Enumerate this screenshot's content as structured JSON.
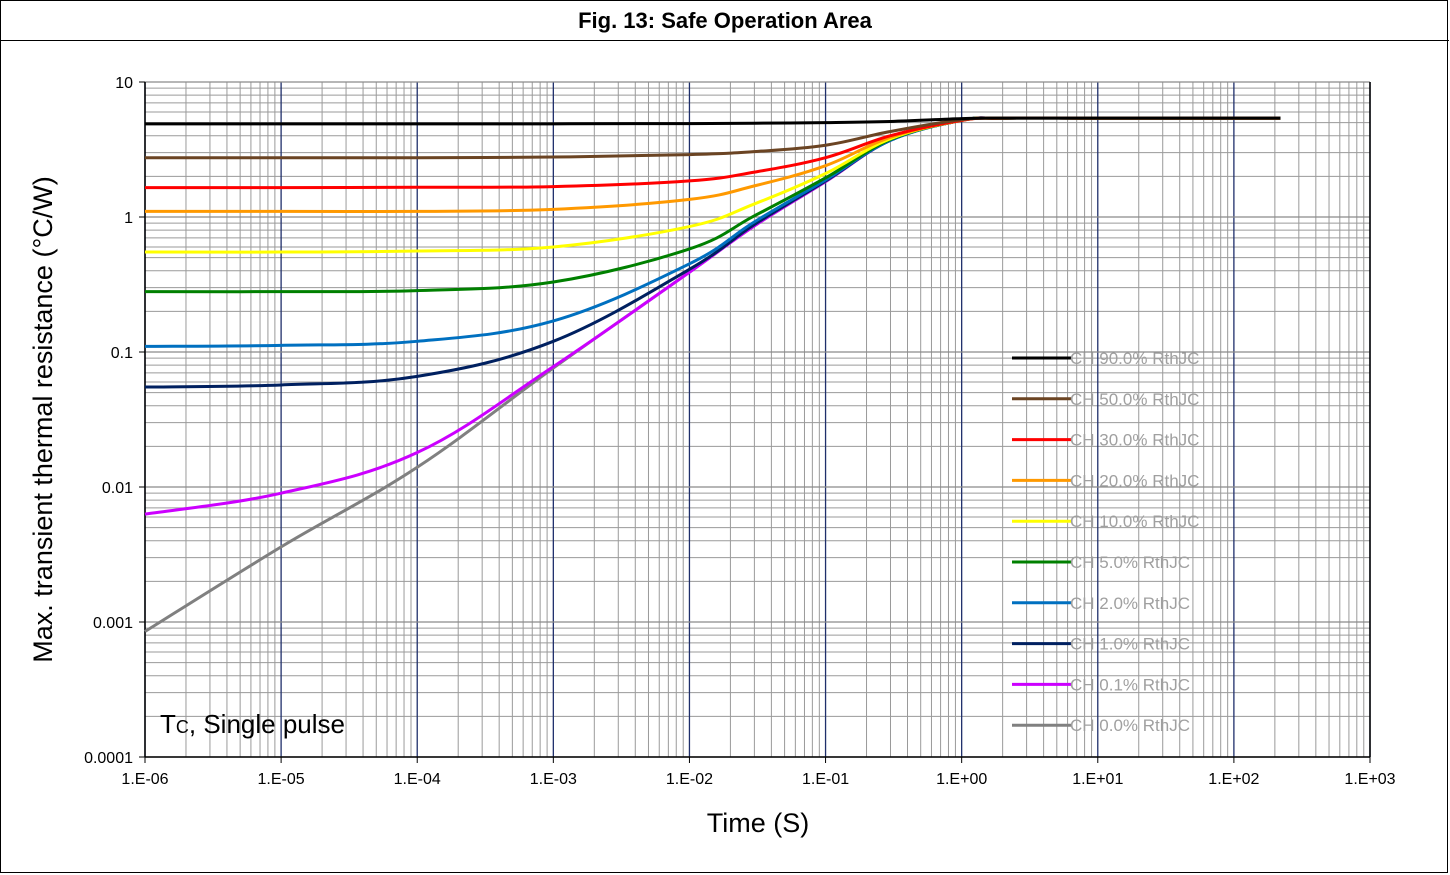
{
  "title": "Fig. 13: Safe Operation Area",
  "chart_data": {
    "type": "line",
    "title": "Fig. 13: Safe Operation Area",
    "xlabel": "Time (S)",
    "ylabel": "Max. transient thermal resistance (°C/W)",
    "x_scale": "log",
    "y_scale": "log",
    "xlim": [
      1e-06,
      1000
    ],
    "ylim": [
      0.0001,
      10
    ],
    "x_tick_labels": [
      "1.E-06",
      "1.E-05",
      "1.E-04",
      "1.E-03",
      "1.E-02",
      "1.E-01",
      "1.E+00",
      "1.E+01",
      "1.E+02",
      "1.E+03"
    ],
    "y_tick_labels": [
      "10",
      "1",
      "0.1",
      "0.01",
      "0.001",
      "0.0001"
    ],
    "grid": true,
    "legend_position": "right",
    "annotation": "Tc, Single pulse",
    "x": [
      1e-06,
      1e-05,
      0.0001,
      0.001,
      0.01,
      0.03,
      0.1,
      0.3,
      1,
      2,
      10,
      100,
      220
    ],
    "series": [
      {
        "name": "CH 90.0% RthJC",
        "color": "#000000",
        "values": [
          4.9,
          4.9,
          4.9,
          4.9,
          4.92,
          4.95,
          5.0,
          5.1,
          5.35,
          5.4,
          5.4,
          5.4,
          5.4
        ]
      },
      {
        "name": "CH 50.0% RthJC",
        "color": "#6b4423",
        "values": [
          2.75,
          2.75,
          2.75,
          2.78,
          2.9,
          3.05,
          3.4,
          4.3,
          5.25,
          5.4,
          5.4,
          5.4,
          5.4
        ]
      },
      {
        "name": "CH 30.0% RthJC",
        "color": "#ff0000",
        "values": [
          1.65,
          1.65,
          1.66,
          1.68,
          1.85,
          2.15,
          2.75,
          4.0,
          5.2,
          5.4,
          5.4,
          5.4,
          5.4
        ]
      },
      {
        "name": "CH 20.0% RthJC",
        "color": "#ff9900",
        "values": [
          1.1,
          1.1,
          1.1,
          1.14,
          1.35,
          1.7,
          2.4,
          3.9,
          5.2,
          5.4,
          5.4,
          5.4,
          5.4
        ]
      },
      {
        "name": "CH 10.0% RthJC",
        "color": "#ffff00",
        "values": [
          0.55,
          0.55,
          0.56,
          0.6,
          0.85,
          1.25,
          2.1,
          3.8,
          5.2,
          5.4,
          5.4,
          5.4,
          5.4
        ]
      },
      {
        "name": "CH 5.0% RthJC",
        "color": "#008000",
        "values": [
          0.28,
          0.28,
          0.285,
          0.33,
          0.58,
          1.02,
          1.95,
          3.75,
          5.2,
          5.4,
          5.4,
          5.4,
          5.4
        ]
      },
      {
        "name": "CH 2.0% RthJC",
        "color": "#0070c0",
        "values": [
          0.11,
          0.112,
          0.12,
          0.17,
          0.45,
          0.92,
          1.88,
          3.7,
          5.2,
          5.4,
          5.4,
          5.4,
          5.4
        ]
      },
      {
        "name": "CH 1.0% RthJC",
        "color": "#002060",
        "values": [
          0.055,
          0.057,
          0.066,
          0.12,
          0.41,
          0.88,
          1.85,
          3.7,
          5.2,
          5.4,
          5.4,
          5.4,
          5.4
        ]
      },
      {
        "name": "CH 0.1% RthJC",
        "color": "#cc00ff",
        "values": [
          0.0063,
          0.009,
          0.018,
          0.078,
          0.39,
          0.86,
          1.83,
          3.7,
          5.2,
          5.4,
          5.4,
          5.4,
          5.4
        ]
      },
      {
        "name": "CH 0.0% RthJC",
        "color": "#808080",
        "values": [
          0.00085,
          0.0036,
          0.014,
          0.076,
          0.39,
          0.86,
          1.83,
          3.7,
          5.2,
          5.4,
          5.4,
          5.4,
          5.4
        ]
      }
    ]
  }
}
